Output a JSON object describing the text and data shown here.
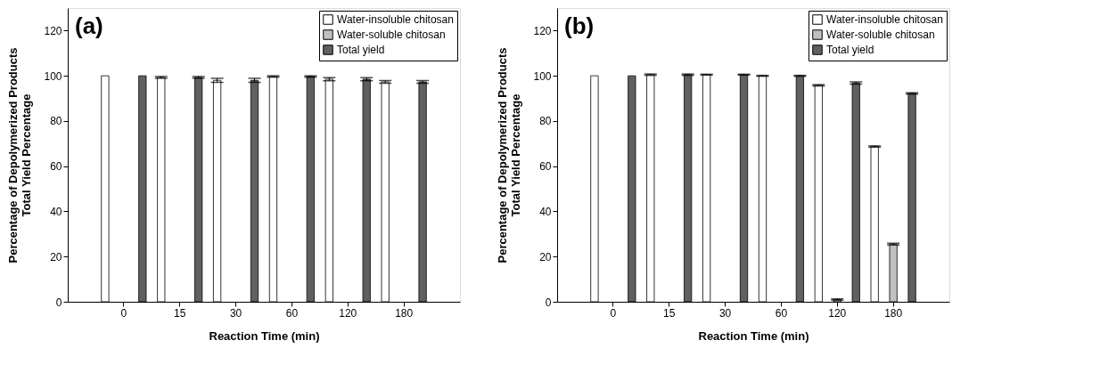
{
  "chart_data": [
    {
      "type": "bar",
      "annotations": [
        "(a)"
      ],
      "xlabel": "Reaction Time (min)",
      "ylabel": "Percentage of Depolymerized Products\nTotal Yield Percentage",
      "categories": [
        "0",
        "15",
        "30",
        "60",
        "120",
        "180"
      ],
      "ylim": [
        0,
        130
      ],
      "yticks": [
        0,
        20,
        40,
        60,
        80,
        100,
        120
      ],
      "legend": "top right",
      "series": [
        {
          "name": "Water-insoluble chitosan",
          "color": "#ffffff",
          "values": [
            100,
            99.3,
            98,
            99.7,
            98.5,
            97.3
          ],
          "errors": [
            null,
            0.4,
            0.9,
            0.3,
            0.7,
            0.6
          ]
        },
        {
          "name": "Water-soluble chitosan",
          "color": "#c0c0c0",
          "values": [
            0,
            0,
            0,
            0,
            0,
            0
          ]
        },
        {
          "name": "Total yield",
          "color": "#606060",
          "values": [
            100,
            99.3,
            98,
            99.7,
            98.5,
            97.3
          ],
          "errors": [
            null,
            0.4,
            0.9,
            0.3,
            0.7,
            0.6
          ]
        }
      ]
    },
    {
      "type": "bar",
      "annotations": [
        "(b)"
      ],
      "xlabel": "Reaction Time (min)",
      "ylabel": "Percentage of Depolymerized Products\nTotal Yield Percentage",
      "categories": [
        "0",
        "15",
        "30",
        "60",
        "120",
        "180"
      ],
      "ylim": [
        0,
        130
      ],
      "yticks": [
        0,
        20,
        40,
        60,
        80,
        100,
        120
      ],
      "legend": "top right",
      "series": [
        {
          "name": "Water-insoluble chitosan",
          "color": "#ffffff",
          "values": [
            100,
            100.5,
            100.5,
            100,
            95.8,
            68.7
          ],
          "errors": [
            null,
            0.3,
            0.2,
            0.2,
            0.3,
            0.3
          ]
        },
        {
          "name": "Water-soluble chitosan",
          "color": "#c0c0c0",
          "values": [
            0,
            0,
            0,
            0,
            1,
            25.5
          ],
          "errors": [
            null,
            null,
            null,
            null,
            0.3,
            0.4
          ]
        },
        {
          "name": "Total yield",
          "color": "#606060",
          "values": [
            100,
            100.5,
            100.5,
            100,
            96.8,
            92.2
          ],
          "errors": [
            null,
            0.3,
            0.2,
            0.2,
            0.5,
            0.3
          ]
        }
      ]
    }
  ]
}
